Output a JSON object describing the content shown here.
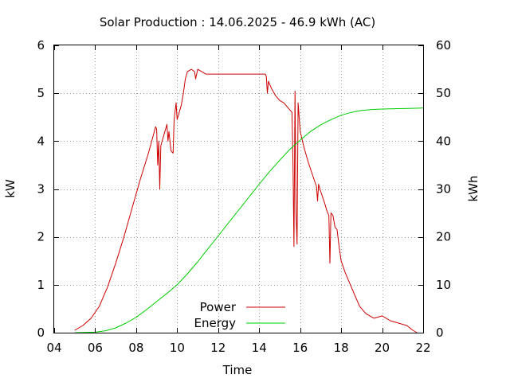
{
  "chart_data": {
    "type": "line",
    "title": "Solar Production : 14.06.2025 - 46.9 kWh (AC)",
    "xlabel": "Time",
    "ylabel": "kW",
    "y2label": "kWh",
    "xlim": [
      4,
      22
    ],
    "ylim": [
      0,
      6
    ],
    "y2lim": [
      0,
      60
    ],
    "x_ticks": [
      "04",
      "06",
      "08",
      "10",
      "12",
      "14",
      "16",
      "18",
      "20",
      "22"
    ],
    "y_ticks": [
      "0",
      "1",
      "2",
      "3",
      "4",
      "5",
      "6"
    ],
    "y2_ticks": [
      "0",
      "10",
      "20",
      "30",
      "40",
      "50",
      "60"
    ],
    "grid": true,
    "legend_position": "bottom-center",
    "series": [
      {
        "name": "Power",
        "axis": "y1",
        "color": "#cc0000",
        "points": [
          [
            5.0,
            0.05
          ],
          [
            5.4,
            0.15
          ],
          [
            5.8,
            0.3
          ],
          [
            6.2,
            0.55
          ],
          [
            6.6,
            0.95
          ],
          [
            7.0,
            1.45
          ],
          [
            7.4,
            2.0
          ],
          [
            7.8,
            2.6
          ],
          [
            8.2,
            3.2
          ],
          [
            8.6,
            3.75
          ],
          [
            8.95,
            4.3
          ],
          [
            9.0,
            4.25
          ],
          [
            9.05,
            3.5
          ],
          [
            9.1,
            4.0
          ],
          [
            9.15,
            3.0
          ],
          [
            9.2,
            3.9
          ],
          [
            9.3,
            4.05
          ],
          [
            9.4,
            4.2
          ],
          [
            9.5,
            4.35
          ],
          [
            9.55,
            4.0
          ],
          [
            9.6,
            4.2
          ],
          [
            9.7,
            3.8
          ],
          [
            9.8,
            3.75
          ],
          [
            9.85,
            4.45
          ],
          [
            9.95,
            4.8
          ],
          [
            10.0,
            4.45
          ],
          [
            10.1,
            4.6
          ],
          [
            10.2,
            4.75
          ],
          [
            10.3,
            5.0
          ],
          [
            10.4,
            5.3
          ],
          [
            10.5,
            5.45
          ],
          [
            10.7,
            5.5
          ],
          [
            10.85,
            5.45
          ],
          [
            10.9,
            5.3
          ],
          [
            11.0,
            5.5
          ],
          [
            11.2,
            5.45
          ],
          [
            11.4,
            5.4
          ],
          [
            12.0,
            5.4
          ],
          [
            13.0,
            5.4
          ],
          [
            14.0,
            5.4
          ],
          [
            14.3,
            5.4
          ],
          [
            14.35,
            5.35
          ],
          [
            14.4,
            5.0
          ],
          [
            14.45,
            5.25
          ],
          [
            14.6,
            5.1
          ],
          [
            14.8,
            4.95
          ],
          [
            15.0,
            4.85
          ],
          [
            15.2,
            4.8
          ],
          [
            15.4,
            4.7
          ],
          [
            15.5,
            4.65
          ],
          [
            15.6,
            4.6
          ],
          [
            15.65,
            3.5
          ],
          [
            15.7,
            1.8
          ],
          [
            15.75,
            5.05
          ],
          [
            15.8,
            2.5
          ],
          [
            15.85,
            1.85
          ],
          [
            15.9,
            4.8
          ],
          [
            16.0,
            4.2
          ],
          [
            16.2,
            3.85
          ],
          [
            16.4,
            3.55
          ],
          [
            16.6,
            3.3
          ],
          [
            16.8,
            3.05
          ],
          [
            16.85,
            2.75
          ],
          [
            16.9,
            3.1
          ],
          [
            17.0,
            2.95
          ],
          [
            17.2,
            2.7
          ],
          [
            17.3,
            2.55
          ],
          [
            17.4,
            2.45
          ],
          [
            17.45,
            1.45
          ],
          [
            17.5,
            2.5
          ],
          [
            17.6,
            2.45
          ],
          [
            17.7,
            2.2
          ],
          [
            17.8,
            2.15
          ],
          [
            17.9,
            1.8
          ],
          [
            18.0,
            1.5
          ],
          [
            18.2,
            1.25
          ],
          [
            18.4,
            1.05
          ],
          [
            18.6,
            0.85
          ],
          [
            18.7,
            0.75
          ],
          [
            18.9,
            0.55
          ],
          [
            19.2,
            0.4
          ],
          [
            19.6,
            0.3
          ],
          [
            20.0,
            0.35
          ],
          [
            20.4,
            0.25
          ],
          [
            20.8,
            0.2
          ],
          [
            21.2,
            0.15
          ],
          [
            21.5,
            0.05
          ],
          [
            21.7,
            0.0
          ]
        ]
      },
      {
        "name": "Energy",
        "axis": "y2",
        "color": "#00cc00",
        "points": [
          [
            5.0,
            0.0
          ],
          [
            6.0,
            0.1
          ],
          [
            6.5,
            0.4
          ],
          [
            7.0,
            1.0
          ],
          [
            7.5,
            2.0
          ],
          [
            8.0,
            3.2
          ],
          [
            8.5,
            4.8
          ],
          [
            9.0,
            6.5
          ],
          [
            9.5,
            8.2
          ],
          [
            10.0,
            10.0
          ],
          [
            10.5,
            12.3
          ],
          [
            11.0,
            14.8
          ],
          [
            11.5,
            17.5
          ],
          [
            12.0,
            20.2
          ],
          [
            12.5,
            22.9
          ],
          [
            13.0,
            25.6
          ],
          [
            13.5,
            28.3
          ],
          [
            14.0,
            31.0
          ],
          [
            14.5,
            33.6
          ],
          [
            15.0,
            36.0
          ],
          [
            15.5,
            38.3
          ],
          [
            16.0,
            40.2
          ],
          [
            16.5,
            42.0
          ],
          [
            17.0,
            43.4
          ],
          [
            17.5,
            44.5
          ],
          [
            18.0,
            45.4
          ],
          [
            18.5,
            46.0
          ],
          [
            19.0,
            46.4
          ],
          [
            19.5,
            46.6
          ],
          [
            20.0,
            46.7
          ],
          [
            21.0,
            46.8
          ],
          [
            22.0,
            46.9
          ]
        ]
      }
    ]
  }
}
